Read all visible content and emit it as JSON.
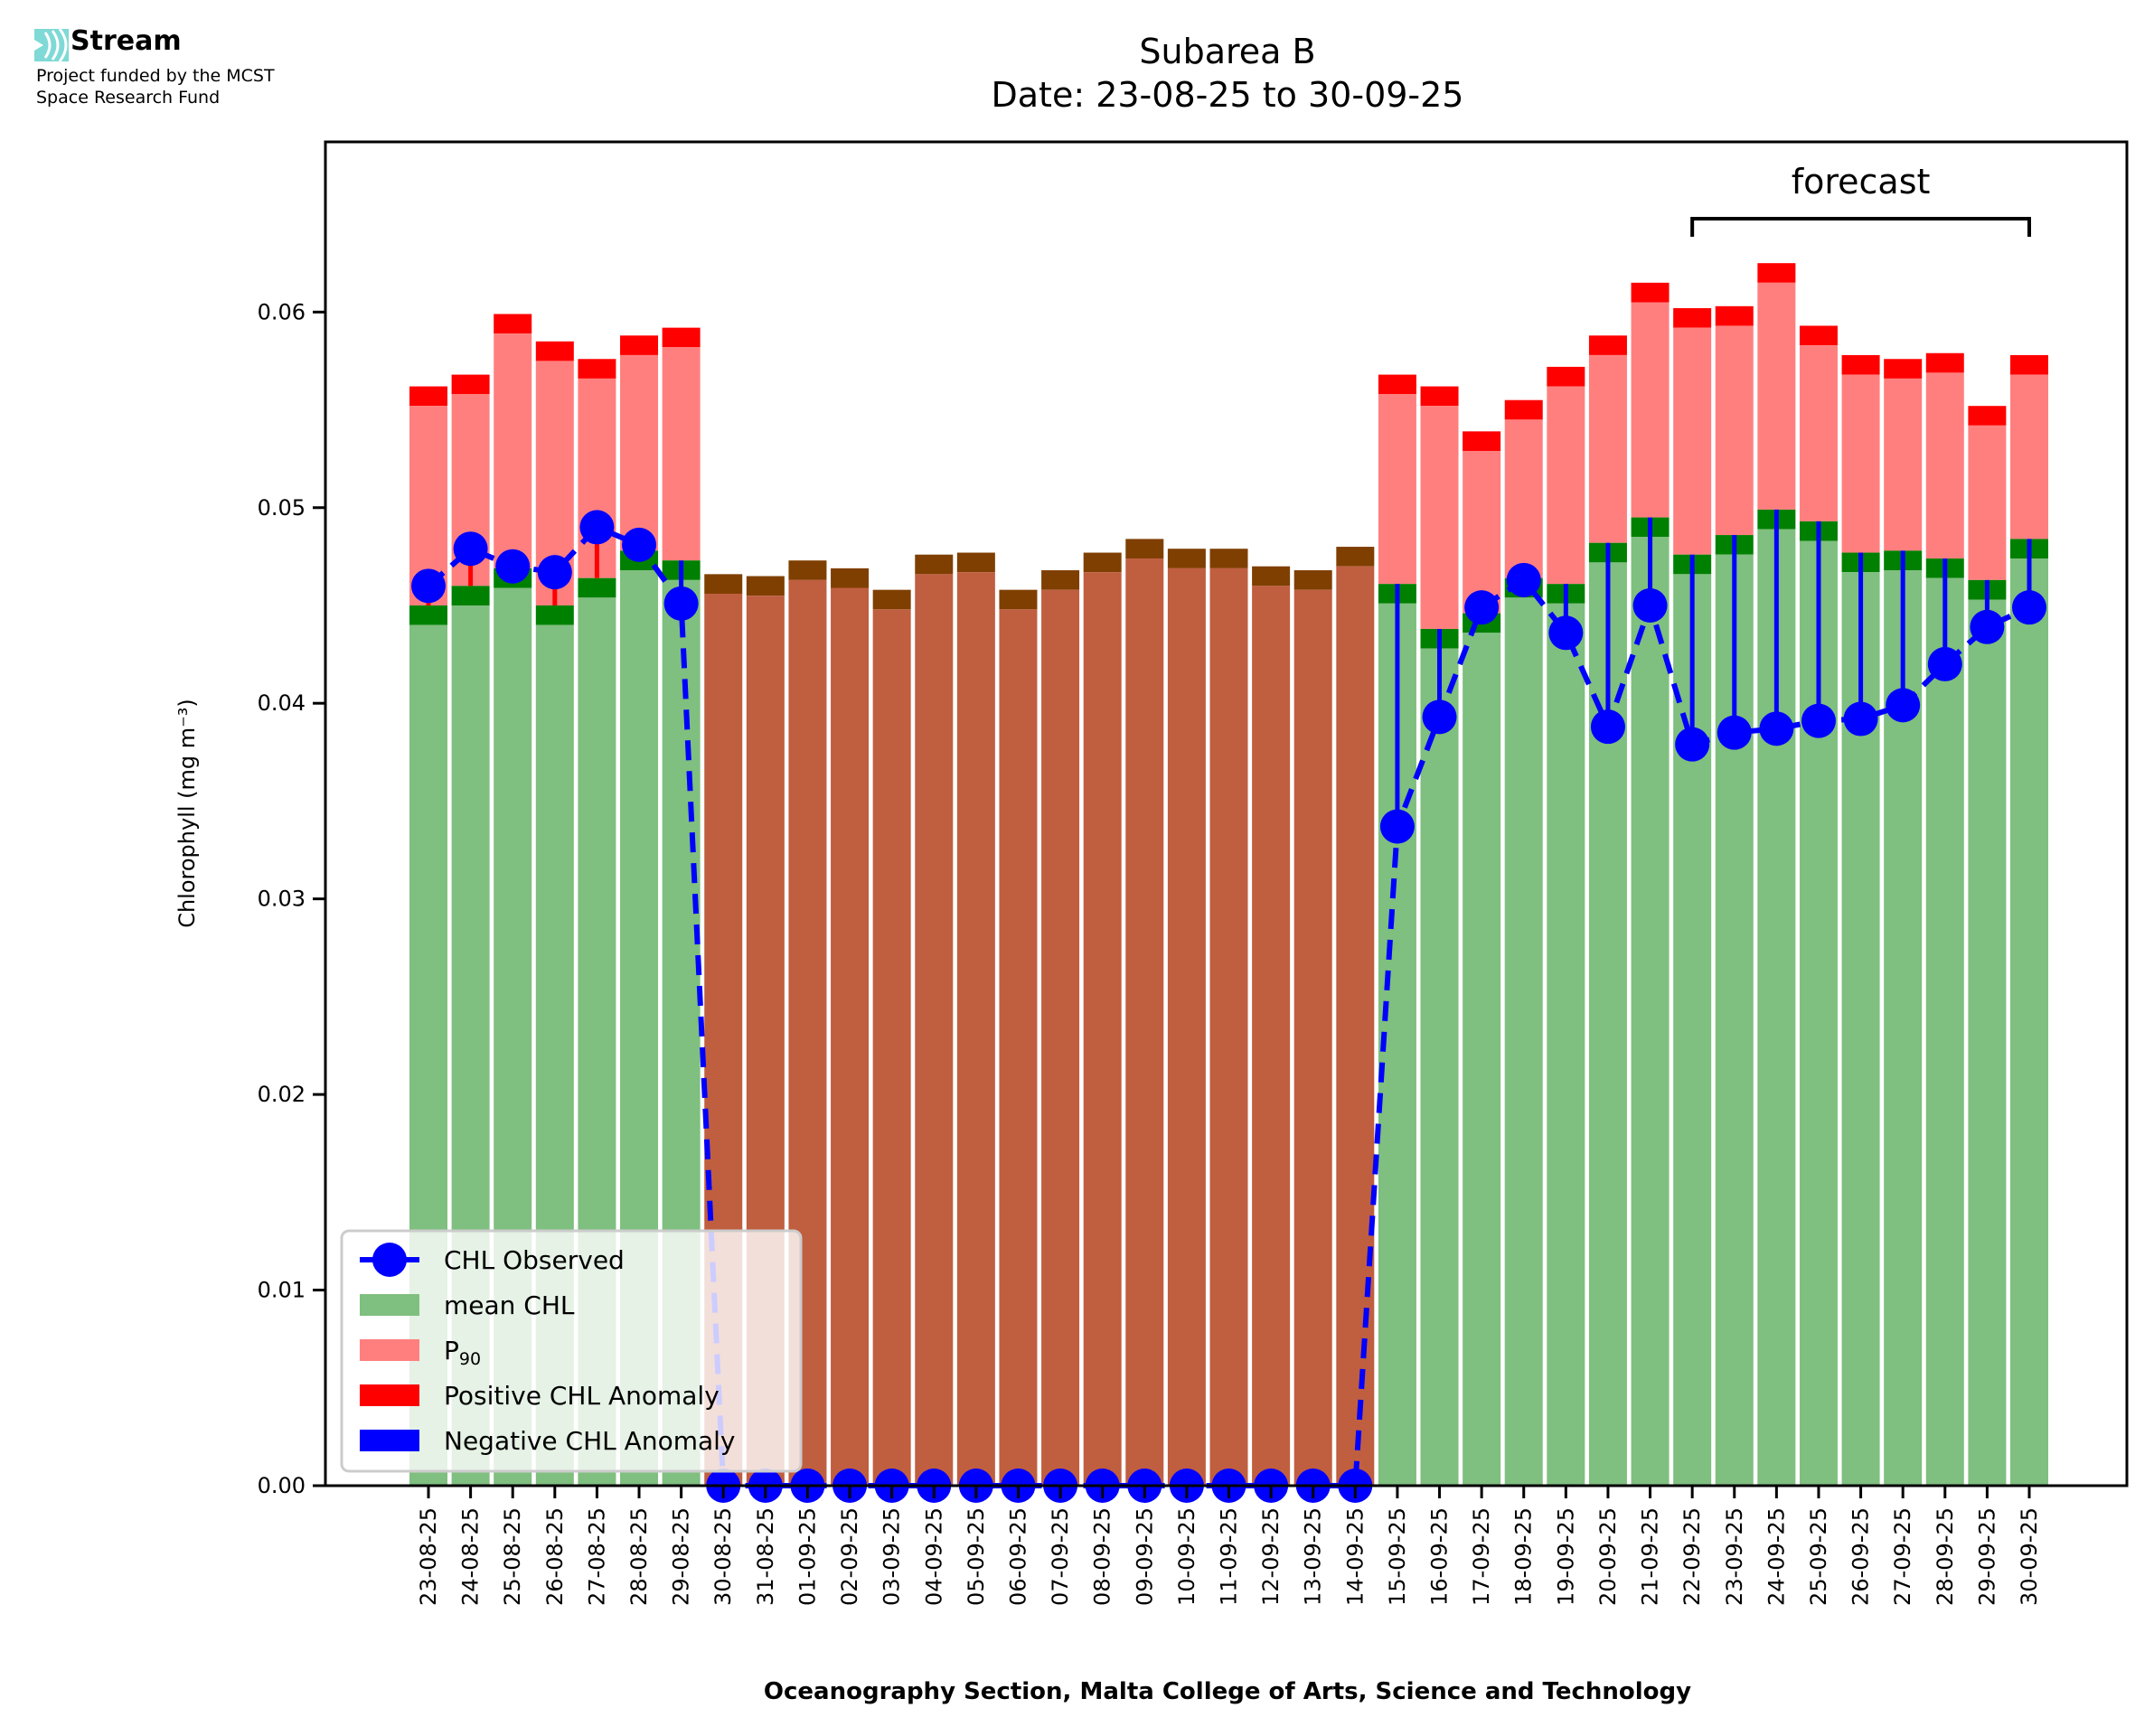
{
  "logo": {
    "brand": "Stream",
    "line1": "Project funded by the MCST",
    "line2": "Space Research Fund",
    "icon": "stream-waves-icon",
    "icon_color": "#7fd9d6"
  },
  "chart_data": {
    "type": "bar",
    "title": "Subarea B",
    "subtitle": "Date: 23-08-25 to 30-09-25",
    "xlabel": "Oceanography Section, Malta College of Arts, Science and Technology",
    "ylabel": "Chlorophyll (mg m⁻³)",
    "ylim": [
      0,
      0.0687
    ],
    "yticks": [
      "0.00",
      "0.01",
      "0.02",
      "0.03",
      "0.04",
      "0.05",
      "0.06"
    ],
    "ytick_values": [
      0,
      0.01,
      0.02,
      0.03,
      0.04,
      0.05,
      0.06
    ],
    "grid": false,
    "legend_position": "lower-left",
    "band_thickness": 0.001,
    "categories": [
      "23-08-25",
      "24-08-25",
      "25-08-25",
      "26-08-25",
      "27-08-25",
      "28-08-25",
      "29-08-25",
      "30-08-25",
      "31-08-25",
      "01-09-25",
      "02-09-25",
      "03-09-25",
      "04-09-25",
      "05-09-25",
      "06-09-25",
      "07-09-25",
      "08-09-25",
      "09-09-25",
      "10-09-25",
      "11-09-25",
      "12-09-25",
      "13-09-25",
      "14-09-25",
      "15-09-25",
      "16-09-25",
      "17-09-25",
      "18-09-25",
      "19-09-25",
      "20-09-25",
      "21-09-25",
      "22-09-25",
      "23-09-25",
      "24-09-25",
      "25-09-25",
      "26-09-25",
      "27-09-25",
      "28-09-25",
      "29-09-25",
      "30-09-25"
    ],
    "series": [
      {
        "name": "mean CHL",
        "color": "#7fbf7f",
        "band_color": "#008000",
        "values": [
          0.044,
          0.045,
          0.0459,
          0.044,
          0.0454,
          0.0468,
          0.0463,
          0.0456,
          0.0455,
          0.0463,
          0.0459,
          0.0448,
          0.0466,
          0.0467,
          0.0448,
          0.0458,
          0.0467,
          0.0474,
          0.0469,
          0.0469,
          0.046,
          0.0458,
          0.047,
          0.0451,
          0.0428,
          0.0436,
          0.0454,
          0.0451,
          0.0472,
          0.0485,
          0.0466,
          0.0476,
          0.0489,
          0.0483,
          0.0467,
          0.0468,
          0.0464,
          0.0453,
          0.0474
        ]
      },
      {
        "name": "P₉₀",
        "color": "#ff7f7f",
        "band_color": "#ff0000",
        "values": [
          0.0552,
          0.0558,
          0.0589,
          0.0575,
          0.0566,
          0.0578,
          0.0582,
          null,
          null,
          null,
          null,
          null,
          null,
          null,
          null,
          null,
          null,
          null,
          null,
          null,
          null,
          null,
          null,
          0.0558,
          0.0552,
          0.0529,
          0.0545,
          0.0562,
          0.0578,
          0.0605,
          0.0592,
          0.0593,
          0.0615,
          0.0583,
          0.0568,
          0.0566,
          0.0569,
          0.0542,
          0.0568
        ]
      },
      {
        "name": "CHL Observed",
        "color": "#0000ff",
        "values": [
          0.046,
          0.0479,
          0.047,
          0.0467,
          0.049,
          0.0481,
          0.0451,
          0,
          0,
          0,
          0,
          0,
          0,
          0,
          0,
          0,
          0,
          0,
          0,
          0,
          0,
          0,
          0,
          0.0337,
          0.0393,
          0.0449,
          0.0463,
          0.0436,
          0.0388,
          0.045,
          0.0379,
          0.0385,
          0.0387,
          0.0391,
          0.0392,
          0.0399,
          0.042,
          0.0439,
          0.0449
        ]
      }
    ],
    "missing_data_colors": {
      "bar": "#c05e40",
      "band": "#7f3f00"
    },
    "legend": [
      {
        "label": "CHL Observed",
        "kind": "line-marker",
        "color": "#0000ff"
      },
      {
        "label": "mean CHL",
        "kind": "patch",
        "color": "#7fbf7f"
      },
      {
        "label": "P",
        "sub": "90",
        "kind": "patch",
        "color": "#ff7f7f"
      },
      {
        "label": "Positive CHL Anomaly",
        "kind": "patch",
        "color": "#ff0000"
      },
      {
        "label": "Negative CHL Anomaly",
        "kind": "patch",
        "color": "#0000ff"
      }
    ],
    "annotations": [
      {
        "text": "forecast",
        "from": "22-09-25",
        "to": "30-09-25"
      }
    ]
  }
}
